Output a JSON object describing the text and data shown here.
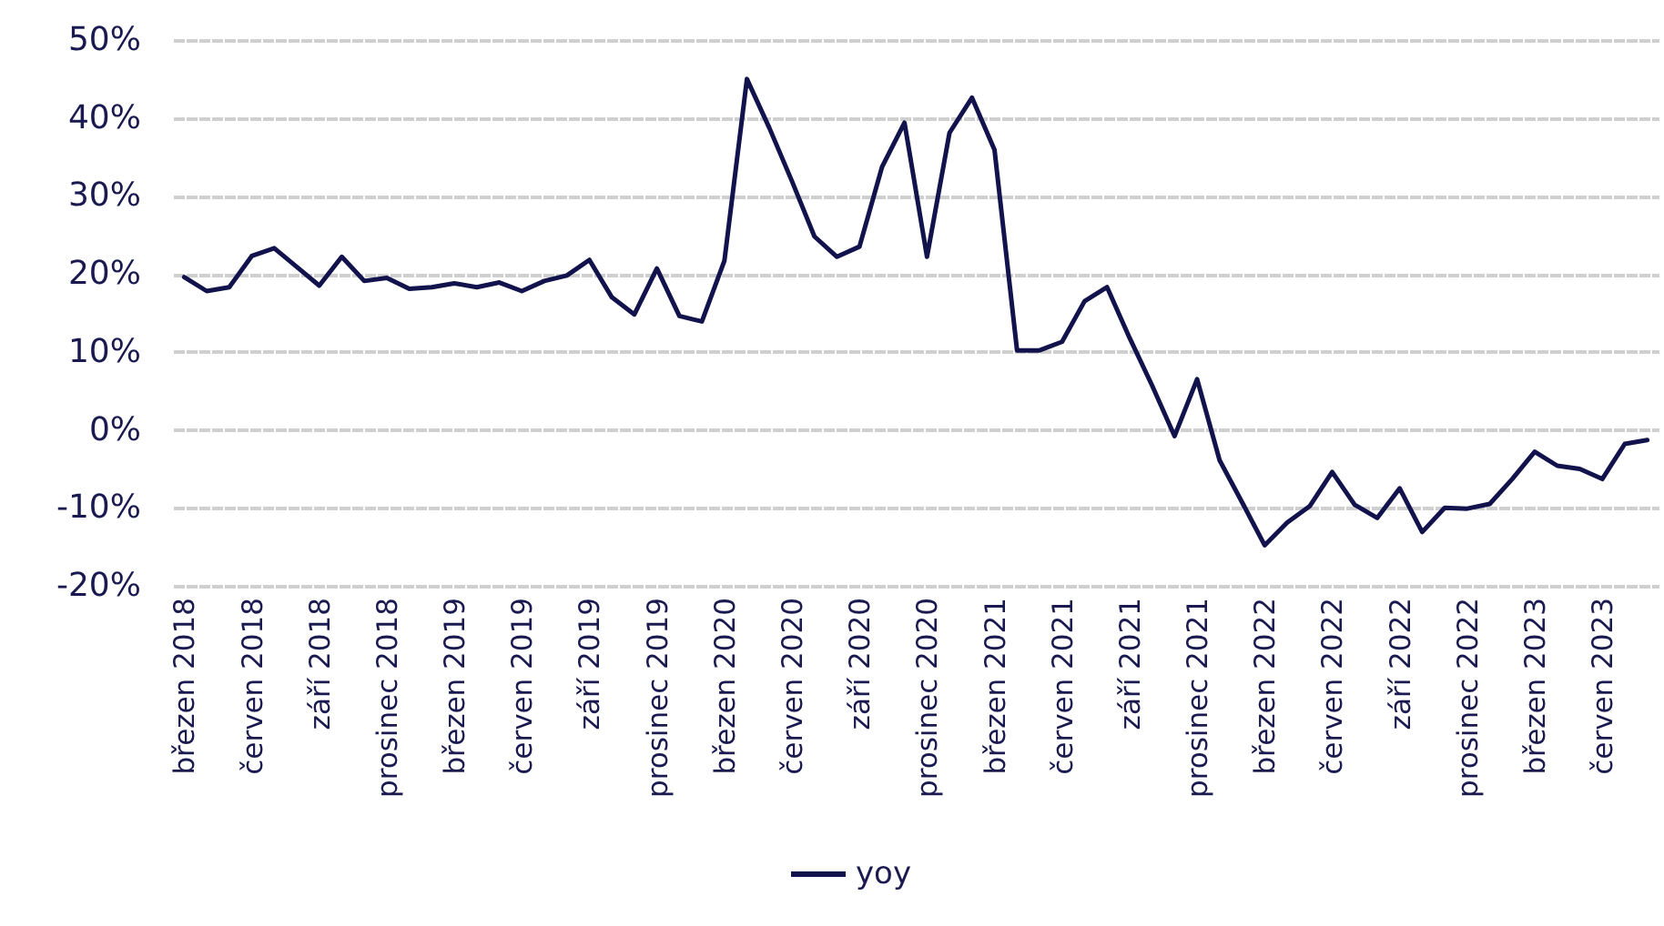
{
  "chart_data": {
    "type": "line",
    "categories": [
      "březen 2018",
      null,
      null,
      "červen 2018",
      null,
      null,
      "září 2018",
      null,
      null,
      "prosinec 2018",
      null,
      null,
      "březen 2019",
      null,
      null,
      "červen 2019",
      null,
      null,
      "září 2019",
      null,
      null,
      "prosinec 2019",
      null,
      null,
      "březen 2020",
      null,
      null,
      "červen 2020",
      null,
      null,
      "září 2020",
      null,
      null,
      "prosinec 2020",
      null,
      null,
      "březen 2021",
      null,
      null,
      "červen 2021",
      null,
      null,
      "září 2021",
      null,
      null,
      "prosinec 2021",
      null,
      null,
      "březen 2022",
      null,
      null,
      "červen 2022",
      null,
      null,
      "září 2022",
      null,
      null,
      "prosinec 2022",
      null,
      null,
      "březen 2023",
      null,
      null,
      "červen 2023",
      null,
      null
    ],
    "series": [
      {
        "name": "yoy",
        "color": "#12124d",
        "values": [
          19.6,
          17.8,
          18.3,
          22.3,
          23.3,
          20.9,
          18.5,
          22.2,
          19.1,
          19.5,
          18.1,
          18.3,
          18.8,
          18.3,
          18.9,
          17.8,
          19.1,
          19.8,
          21.8,
          17.0,
          14.8,
          20.7,
          14.6,
          13.9,
          21.7,
          45.0,
          38.7,
          31.9,
          24.8,
          22.2,
          23.5,
          33.7,
          39.4,
          22.2,
          38.1,
          42.6,
          35.9,
          10.2,
          10.2,
          11.3,
          16.5,
          18.3,
          11.8,
          5.7,
          -0.8,
          6.5,
          -3.9,
          -9.3,
          -14.8,
          -11.9,
          -9.8,
          -5.4,
          -9.6,
          -11.3,
          -7.5,
          -13.1,
          -10.0,
          -10.1,
          -9.5,
          -6.3,
          -2.8,
          -4.6,
          -5.0,
          -6.3,
          -1.8,
          -1.3
        ]
      }
    ],
    "ylim": [
      -20,
      50
    ],
    "yticks": [
      {
        "value": 50,
        "label": "50%"
      },
      {
        "value": 40,
        "label": "40%"
      },
      {
        "value": 30,
        "label": "30%"
      },
      {
        "value": 20,
        "label": "20%"
      },
      {
        "value": 10,
        "label": "10%"
      },
      {
        "value": 0,
        "label": "0%"
      },
      {
        "value": -10,
        "label": "-10%"
      },
      {
        "value": -20,
        "label": "-20%"
      }
    ],
    "grid": "y",
    "legend": "bottom",
    "marker": "none",
    "line_style": "solid"
  }
}
